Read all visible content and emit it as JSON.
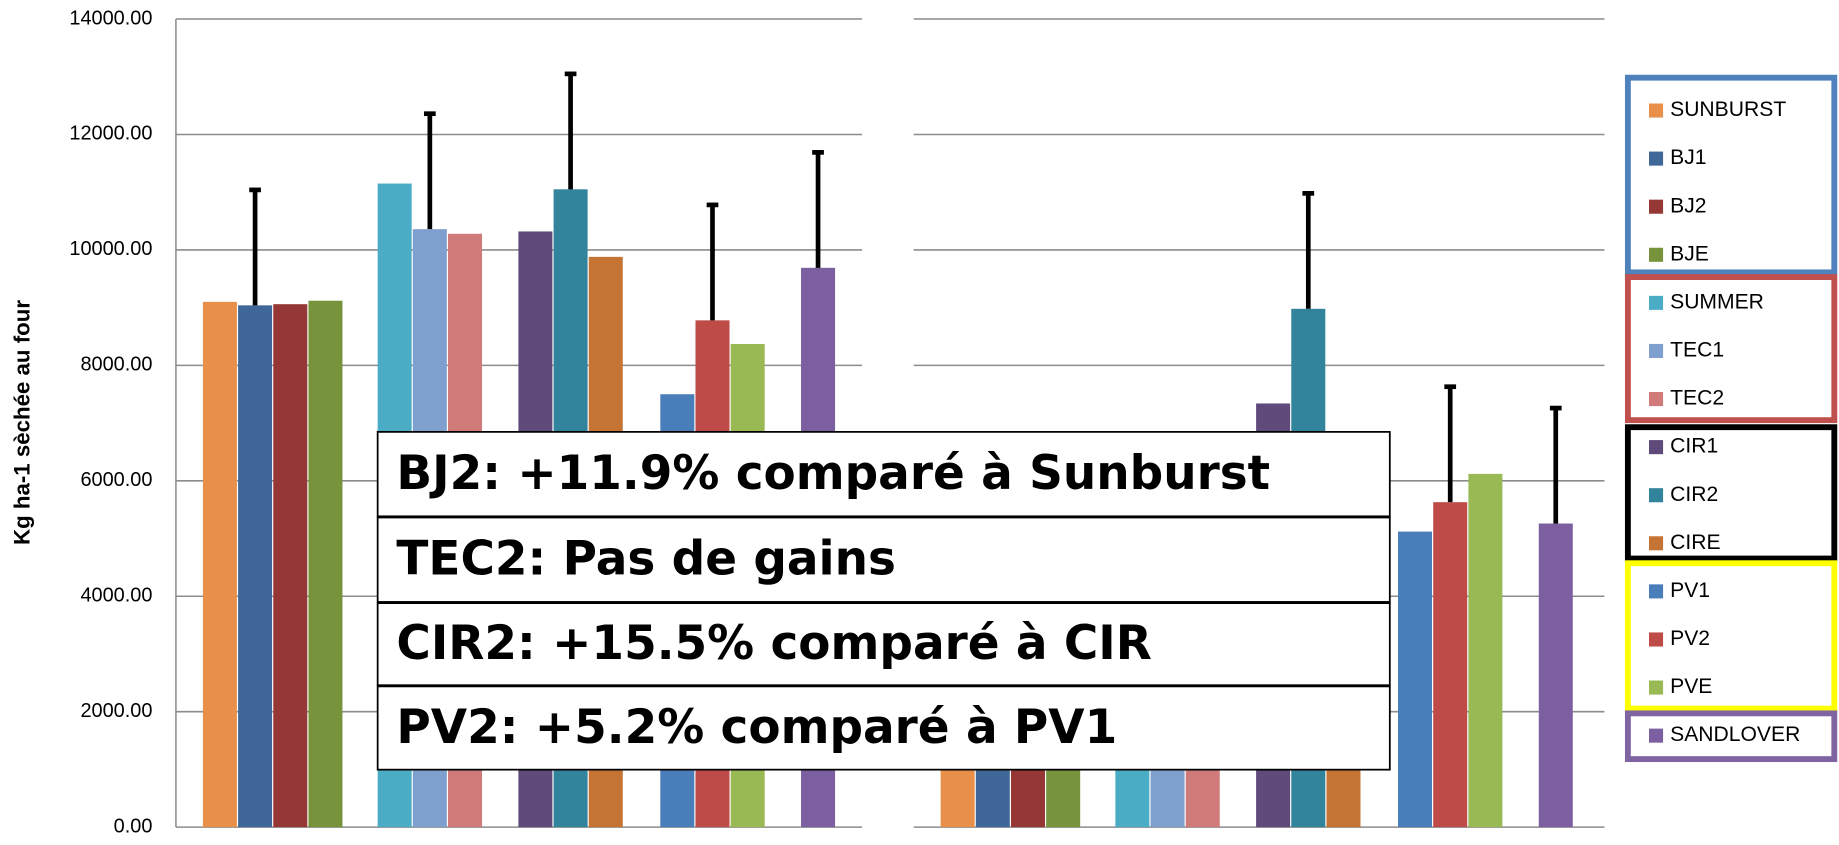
{
  "chart_data": {
    "type": "bar",
    "y_label": "Kg ha-1 sèchée au four",
    "categories": [
      null,
      null
    ],
    "ylim": [
      0,
      14000
    ],
    "yticks": [
      {
        "value": 0,
        "label": "0.00"
      },
      {
        "value": 2000,
        "label": "2000.00"
      },
      {
        "value": 4000,
        "label": "4000.00"
      },
      {
        "value": 6000,
        "label": "6000.00"
      },
      {
        "value": 8000,
        "label": "8000.00"
      },
      {
        "value": 10000,
        "label": "10000.00"
      },
      {
        "value": 12000,
        "label": "12000.00"
      },
      {
        "value": 14000,
        "label": "14000.00"
      }
    ],
    "grid": true,
    "legend": "right",
    "series": [
      {
        "name": "SUNBURST",
        "color": "#e8904a",
        "values": [
          9100,
          5500
        ],
        "errors": [
          null,
          null
        ]
      },
      {
        "name": "BJ1",
        "color": "#3f6899",
        "values": [
          9040,
          5300
        ],
        "errors": [
          2000,
          null
        ]
      },
      {
        "name": "BJ2",
        "color": "#953735",
        "values": [
          9060,
          5400
        ],
        "errors": [
          null,
          null
        ]
      },
      {
        "name": "BJE",
        "color": "#77933c",
        "values": [
          9120,
          5200
        ],
        "errors": [
          null,
          null
        ]
      },
      {
        "name": "SUMMER",
        "color": "#4bacc6",
        "values": [
          11150,
          5000
        ],
        "errors": [
          null,
          null
        ]
      },
      {
        "name": "TEC1",
        "color": "#7f9fcf",
        "values": [
          10360,
          5100
        ],
        "errors": [
          2000,
          null
        ]
      },
      {
        "name": "TEC2",
        "color": "#d07b7a",
        "values": [
          10280,
          4900
        ],
        "errors": [
          null,
          null
        ]
      },
      {
        "name": "CIR1",
        "color": "#604a7b",
        "values": [
          10320,
          7340
        ],
        "errors": [
          null,
          null
        ]
      },
      {
        "name": "CIR2",
        "color": "#31849b",
        "values": [
          11050,
          8980
        ],
        "errors": [
          2000,
          2000
        ]
      },
      {
        "name": "CIRE",
        "color": "#c57434",
        "values": [
          9880,
          5400
        ],
        "errors": [
          null,
          null
        ]
      },
      {
        "name": "PV1",
        "color": "#4a7ebb",
        "values": [
          7500,
          5120
        ],
        "errors": [
          null,
          null
        ]
      },
      {
        "name": "PV2",
        "color": "#be4b48",
        "values": [
          8780,
          5630
        ],
        "errors": [
          2000,
          2000
        ]
      },
      {
        "name": "PVE",
        "color": "#98b954",
        "values": [
          8370,
          6120
        ],
        "errors": [
          null,
          null
        ]
      },
      {
        "name": "SANDLOVER",
        "color": "#7c5fa0",
        "values": [
          9690,
          5260
        ],
        "errors": [
          2000,
          2000
        ]
      }
    ],
    "annotations": [
      "BJ2: +11.9%  comparé à Sunburst",
      "TEC2: Pas de gains",
      "CIR2: +15.5% comparé à CIR",
      "PV2: +5.2% comparé à PV1"
    ]
  }
}
